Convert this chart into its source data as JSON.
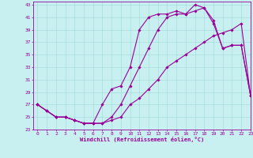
{
  "xlabel": "Windchill (Refroidissement éolien,°C)",
  "xlim": [
    -0.5,
    23
  ],
  "ylim": [
    23,
    43.5
  ],
  "yticks": [
    23,
    25,
    27,
    29,
    31,
    33,
    35,
    37,
    39,
    41,
    43
  ],
  "xticks": [
    0,
    1,
    2,
    3,
    4,
    5,
    6,
    7,
    8,
    9,
    10,
    11,
    12,
    13,
    14,
    15,
    16,
    17,
    18,
    19,
    20,
    21,
    22,
    23
  ],
  "bg_color": "#c8f0f0",
  "line_color": "#990099",
  "grid_color": "#a0d8d8",
  "line1_x": [
    0,
    1,
    2,
    3,
    4,
    5,
    6,
    7,
    8,
    9,
    10,
    11,
    12,
    13,
    14,
    15,
    16,
    17,
    18,
    19,
    20,
    21,
    22,
    23
  ],
  "line1_y": [
    27,
    26,
    25,
    25,
    24.5,
    24,
    24,
    24,
    24.5,
    25,
    27,
    28,
    29.5,
    31,
    33,
    34,
    35,
    36,
    37,
    38,
    38.5,
    39,
    40,
    28.5
  ],
  "line2_x": [
    0,
    1,
    2,
    3,
    4,
    5,
    6,
    7,
    8,
    9,
    10,
    11,
    12,
    13,
    14,
    15,
    16,
    17,
    18,
    19,
    20,
    21,
    22,
    23
  ],
  "line2_y": [
    27,
    26,
    25,
    25,
    24.5,
    24,
    24,
    24,
    25,
    27,
    30,
    33,
    36,
    39,
    41,
    41.5,
    41.5,
    42,
    42.5,
    40.5,
    36,
    36.5,
    36.5,
    28.5
  ],
  "line3_x": [
    0,
    1,
    2,
    3,
    4,
    5,
    6,
    7,
    8,
    9,
    10,
    11,
    12,
    13,
    14,
    15,
    16,
    17,
    18,
    19,
    20,
    21,
    22,
    23
  ],
  "line3_y": [
    27,
    26,
    25,
    25,
    24.5,
    24,
    24,
    27,
    29.5,
    30,
    33,
    39,
    41,
    41.5,
    41.5,
    42,
    41.5,
    43,
    42.5,
    40,
    36,
    36.5,
    36.5,
    28.5
  ]
}
